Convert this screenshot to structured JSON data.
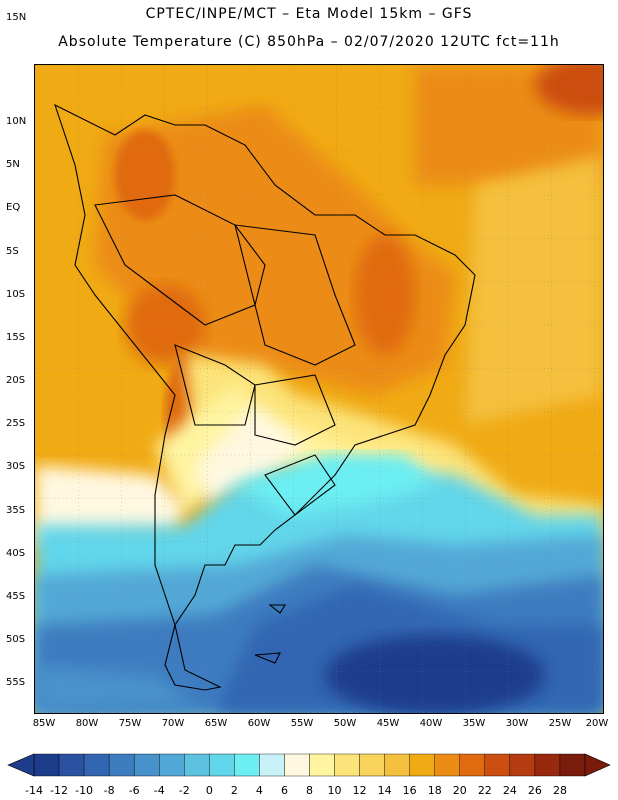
{
  "title_line1": "CPTEC/INPE/MCT –  Eta Model 15km – GFS",
  "title_line2": "Absolute Temperature (C) 850hPa – 02/07/2020 12UTC fct=11h",
  "lat_labels": [
    "15N",
    "10N",
    "5N",
    "EQ",
    "5S",
    "10S",
    "15S",
    "20S",
    "25S",
    "30S",
    "35S",
    "40S",
    "45S",
    "50S",
    "55S"
  ],
  "lon_labels": [
    "85W",
    "80W",
    "75W",
    "70W",
    "65W",
    "60W",
    "55W",
    "50W",
    "45W",
    "40W",
    "35W",
    "30W",
    "25W",
    "20W"
  ],
  "colorbar": {
    "labels": [
      "-14",
      "-12",
      "-10",
      "-8",
      "-6",
      "-4",
      "-2",
      "0",
      "2",
      "4",
      "6",
      "8",
      "10",
      "12",
      "14",
      "16",
      "18",
      "20",
      "22",
      "24",
      "26",
      "28"
    ],
    "colors": [
      "#1e3c8c",
      "#2a52a0",
      "#3366b2",
      "#3e7cc0",
      "#4892cc",
      "#52a8d6",
      "#5cc2e0",
      "#62d6ea",
      "#6ceef2",
      "#c8f2f8",
      "#fff8e0",
      "#fff4a0",
      "#fce47a",
      "#f8d45c",
      "#f4c03e",
      "#f0aa14",
      "#ec8c14",
      "#e06a10",
      "#cc4e10",
      "#b43c10",
      "#98280e",
      "#7a1c0c"
    ]
  }
}
